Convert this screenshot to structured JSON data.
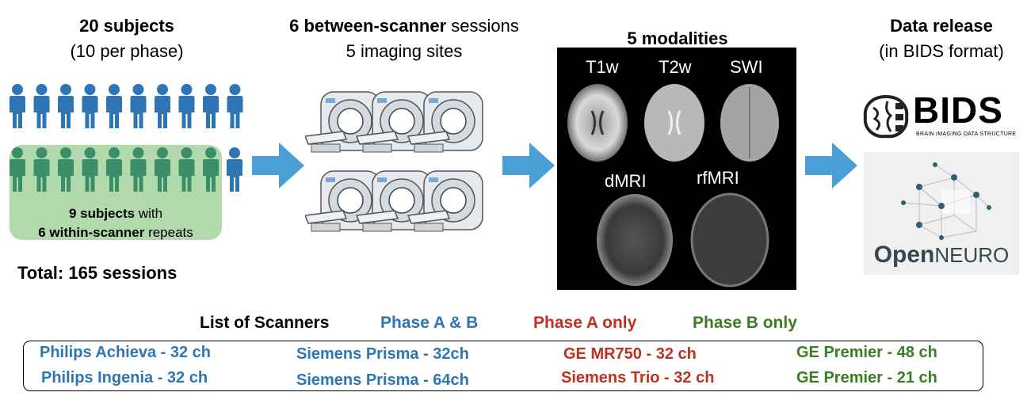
{
  "col1": {
    "title": "20 subjects",
    "subtitle": "(10 per phase)",
    "subset_bold": "9 subjects",
    "subset_rest": " with",
    "repeats_bold": "6 within-scanner",
    "repeats_rest": " repeats",
    "total": "Total: 165 sessions",
    "person_color": "#2e75b6",
    "highlight_color": "#a8d5a2"
  },
  "col2": {
    "title_bold": "6 between-scanner",
    "title_rest": " sessions",
    "subtitle": "5 imaging sites"
  },
  "col3": {
    "title": "5 modalities",
    "modalities": [
      "T1w",
      "T2w",
      "SWI",
      "dMRI",
      "rfMRI"
    ]
  },
  "col4": {
    "title": "Data release",
    "subtitle": "(in BIDS format)",
    "bids_logo_text": "BIDS",
    "bids_tagline": "BRAIN IMAGING DATA STRUCTURE",
    "openneuro_open": "Open",
    "openneuro_neuro": "NEURO"
  },
  "scanner_list": {
    "title": "List of Scanners",
    "legend": [
      {
        "label": "Phase A & B",
        "color": "#2e75b6"
      },
      {
        "label": "Phase A only",
        "color": "#c0311f"
      },
      {
        "label": "Phase B only",
        "color": "#3a7d22"
      }
    ],
    "columns": [
      {
        "color": "#2e75b6",
        "items": [
          "Philips Achieva - 32 ch",
          "Philips Ingenia - 32 ch"
        ]
      },
      {
        "color": "#2e75b6",
        "items": [
          "Siemens Prisma - 32ch",
          "Siemens Prisma - 64ch"
        ]
      },
      {
        "color": "#c0311f",
        "items": [
          "GE MR750 - 32 ch",
          "Siemens Trio - 32 ch"
        ]
      },
      {
        "color": "#3a7d22",
        "items": [
          "GE Premier - 48 ch",
          "GE Premier - 21 ch"
        ]
      }
    ]
  },
  "arrow_color": "#4a9fd6"
}
